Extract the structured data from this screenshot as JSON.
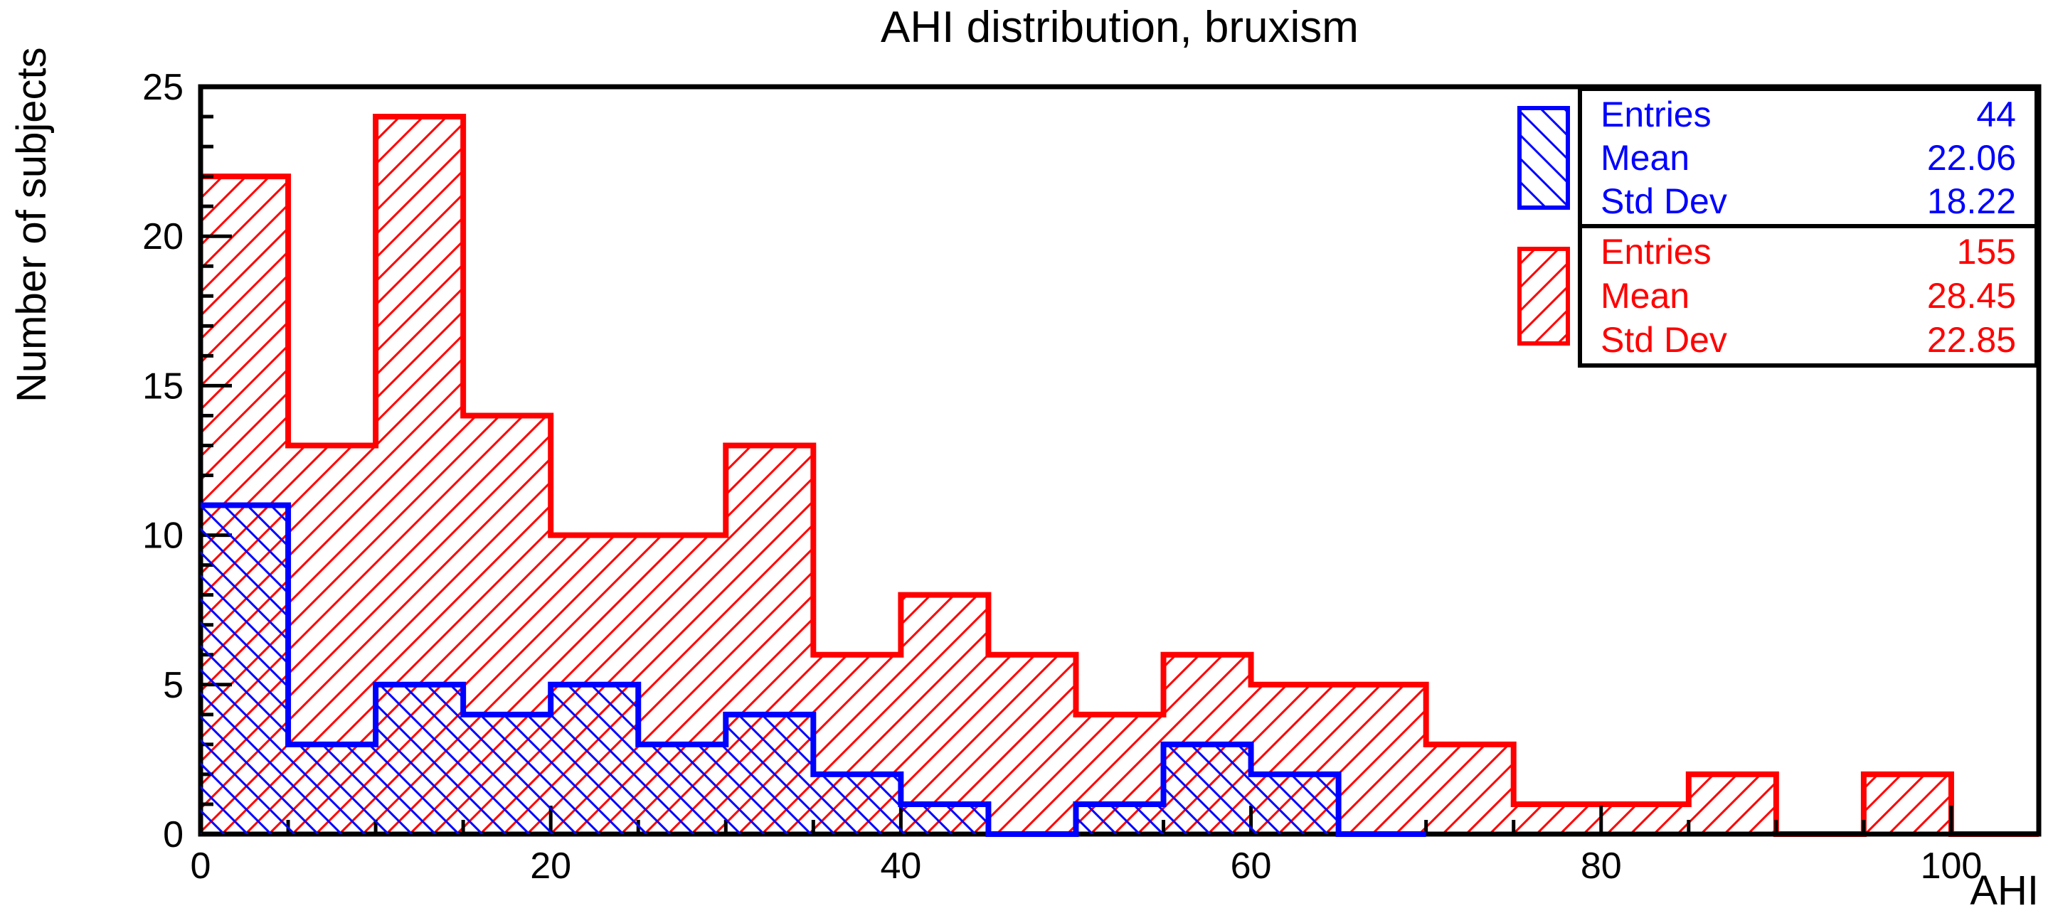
{
  "title": "AHI distribution, bruxism",
  "x_axis": {
    "title": "AHI",
    "min": 0,
    "max": 105,
    "major_ticks": [
      {
        "value": 0,
        "label": "0"
      },
      {
        "value": 20,
        "label": "20"
      },
      {
        "value": 40,
        "label": "40"
      },
      {
        "value": 60,
        "label": "60"
      },
      {
        "value": 80,
        "label": "80"
      },
      {
        "value": 100,
        "label": "100"
      }
    ],
    "minor_step": 5
  },
  "y_axis": {
    "title": "Number of subjects",
    "min": 0,
    "max": 25,
    "major_ticks": [
      {
        "value": 0,
        "label": "0"
      },
      {
        "value": 5,
        "label": "5"
      },
      {
        "value": 10,
        "label": "10"
      },
      {
        "value": 15,
        "label": "15"
      },
      {
        "value": 20,
        "label": "20"
      },
      {
        "value": 25,
        "label": "25"
      }
    ],
    "minor_step": 1
  },
  "chart_data": {
    "type": "bar",
    "subtype": "overlaid-step-histograms",
    "bin_start": 0,
    "bin_width": 5,
    "title": "AHI distribution, bruxism",
    "xlabel": "AHI",
    "ylabel": "Number of subjects",
    "xlim": [
      0,
      105
    ],
    "ylim": [
      0,
      25
    ],
    "grid": false,
    "series": [
      {
        "id": "red",
        "color": "#ff0000",
        "hatch": "/",
        "range": [
          0,
          105
        ],
        "counts": [
          22,
          13,
          24,
          14,
          10,
          10,
          13,
          6,
          8,
          6,
          4,
          6,
          5,
          5,
          3,
          1,
          1,
          2,
          0,
          2,
          0
        ],
        "entries": 155,
        "mean": 28.45,
        "std_dev": 22.85
      },
      {
        "id": "blue",
        "color": "#0000ff",
        "hatch": "\\",
        "range": [
          0,
          70
        ],
        "counts": [
          11,
          3,
          5,
          4,
          5,
          3,
          4,
          2,
          1,
          0,
          1,
          3,
          2,
          0
        ],
        "entries": 44,
        "mean": 22.06,
        "std_dev": 18.22
      }
    ]
  },
  "stats_boxes": [
    {
      "color": "#0000ff",
      "rows": [
        {
          "label": "Entries",
          "value": "44"
        },
        {
          "label": "Mean",
          "value": "22.06"
        },
        {
          "label": "Std Dev",
          "value": "18.22"
        }
      ]
    },
    {
      "color": "#ff0000",
      "rows": [
        {
          "label": "Entries",
          "value": "155"
        },
        {
          "label": "Mean",
          "value": "28.45"
        },
        {
          "label": "Std Dev",
          "value": "22.85"
        }
      ]
    }
  ],
  "colors": {
    "frame": "#000000",
    "background": "#ffffff",
    "blue_series": "#0000ff",
    "red_series": "#ff0000"
  }
}
